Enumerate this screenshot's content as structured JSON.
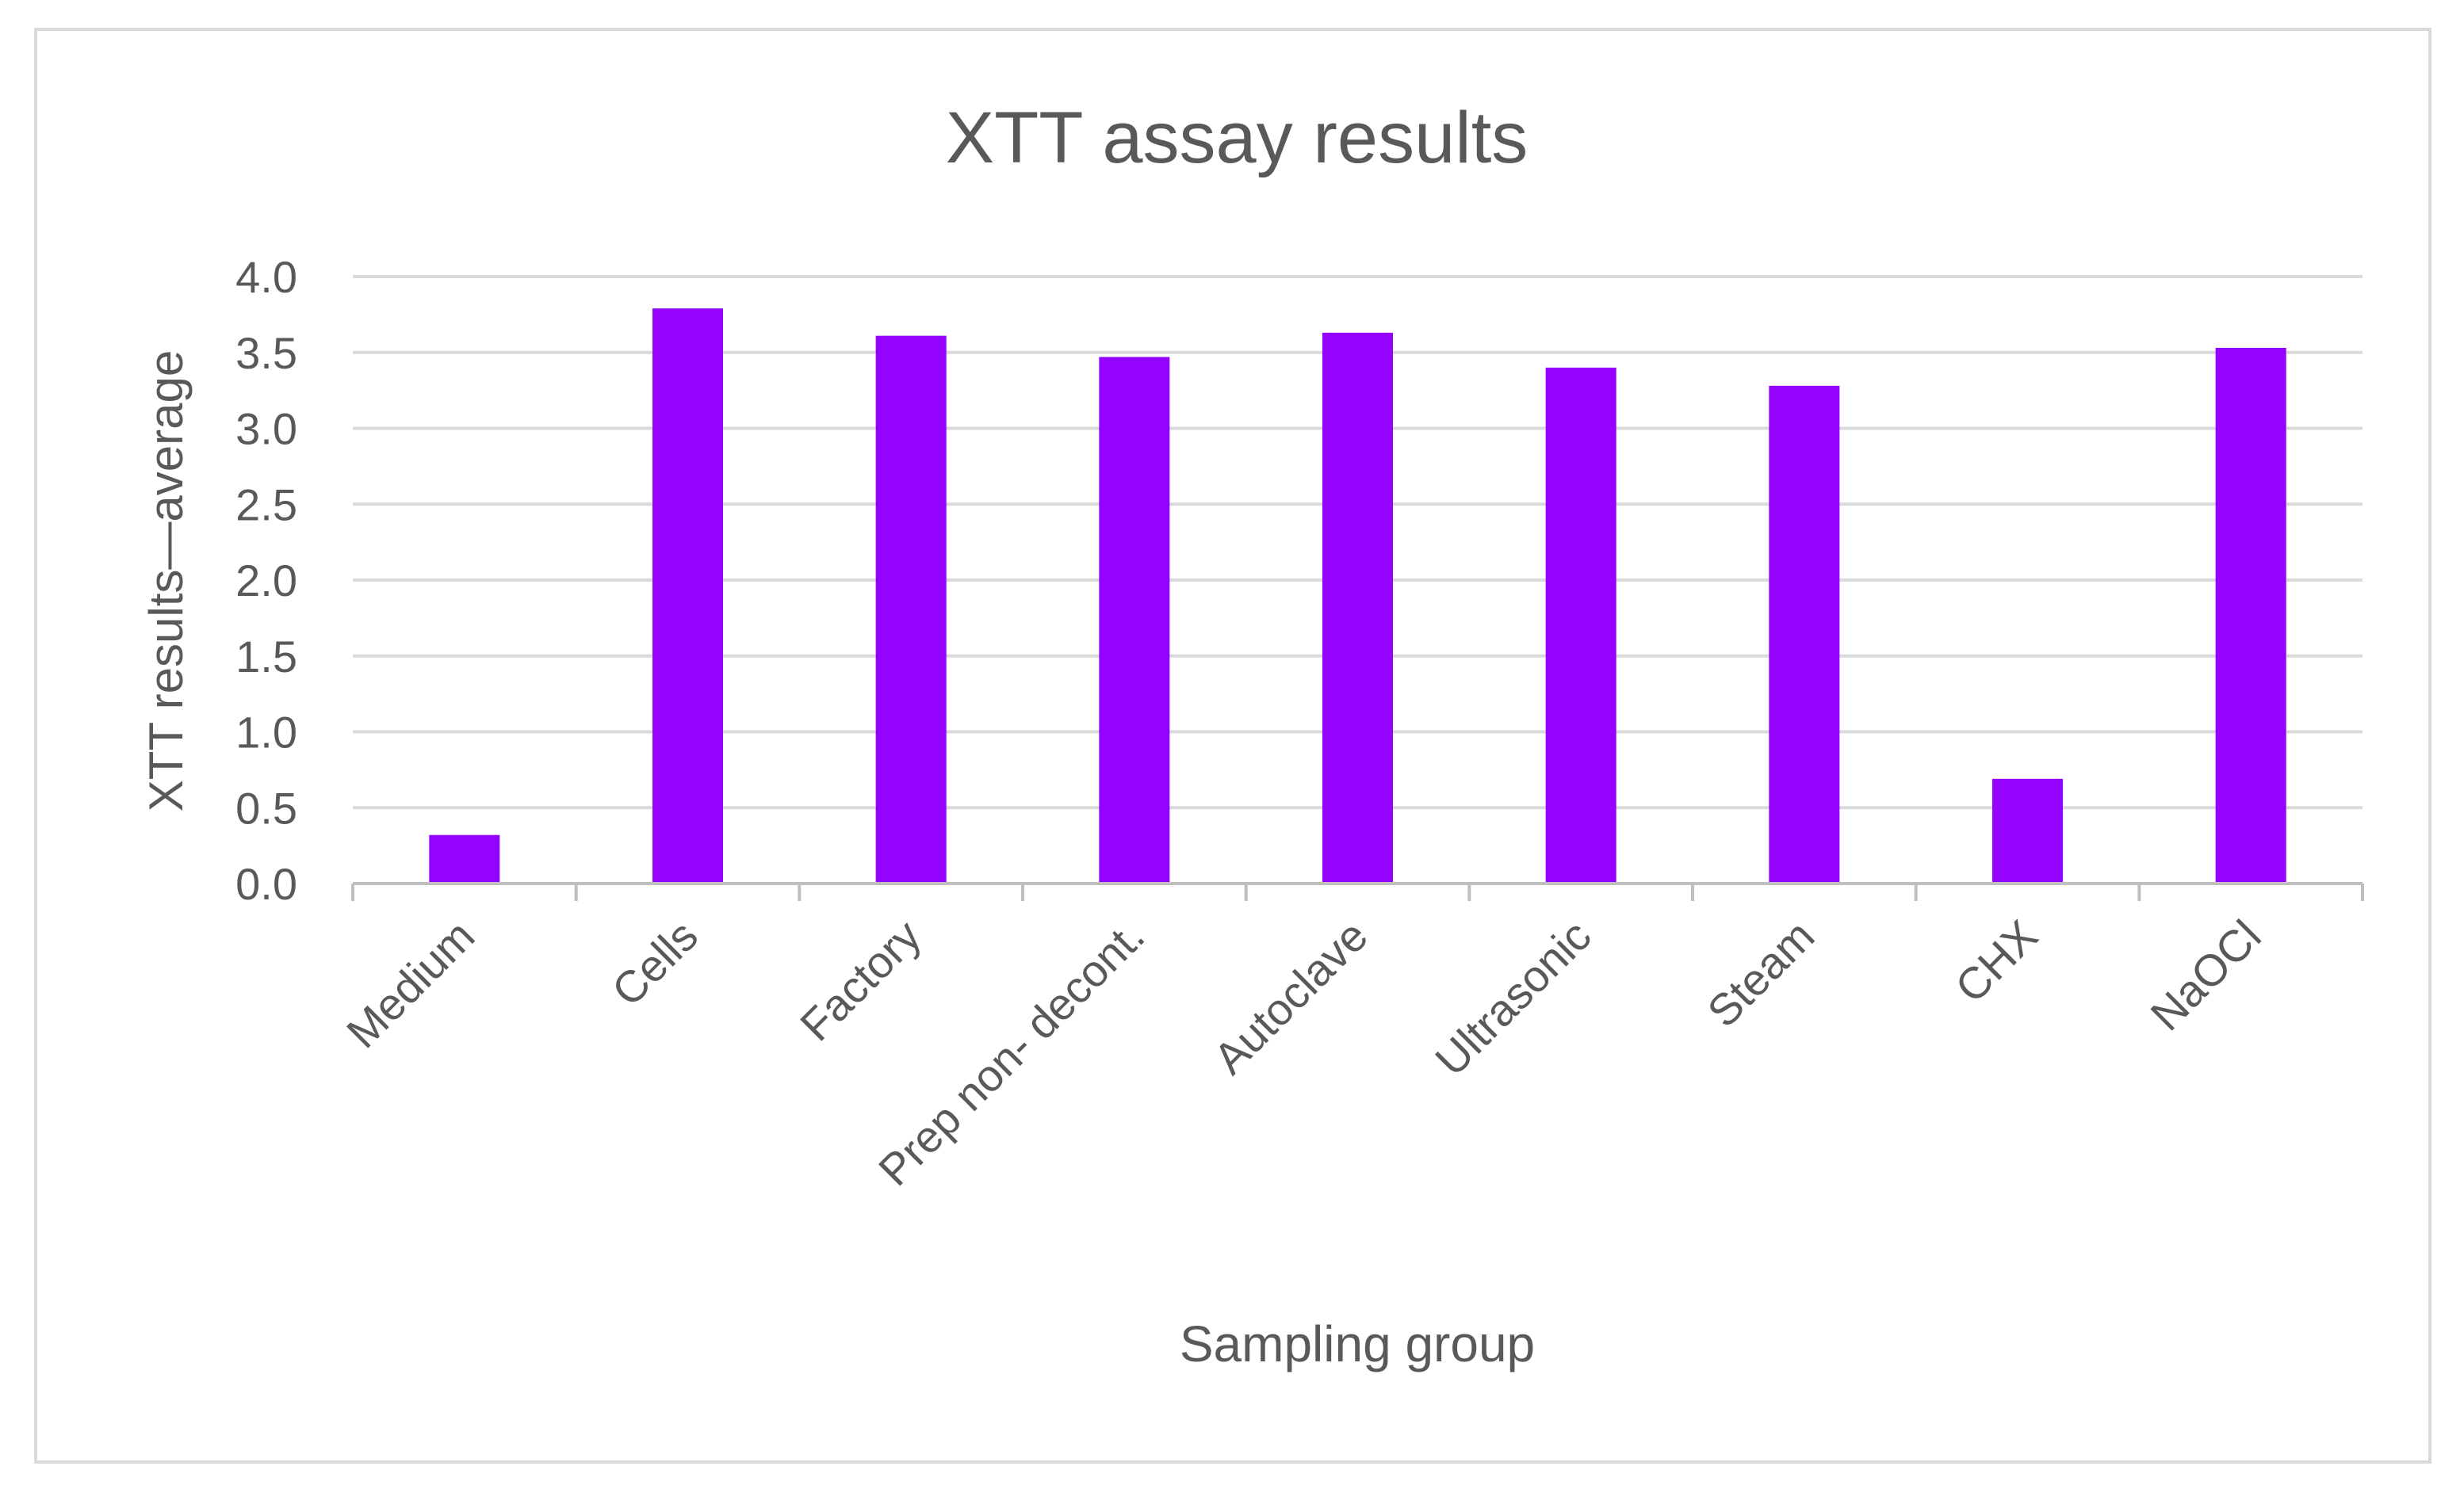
{
  "chart_data": {
    "type": "bar",
    "title": "XTT assay results",
    "xlabel": "Sampling group",
    "ylabel": "XTT results—average",
    "categories": [
      "Medium",
      "Cells",
      "Factory",
      "Prep non- decont.",
      "Autoclave",
      "Ultrasonic",
      "Steam",
      "CHX",
      "NaOCl"
    ],
    "values": [
      0.32,
      3.79,
      3.61,
      3.47,
      3.63,
      3.4,
      3.28,
      0.69,
      3.53
    ],
    "ylim": [
      0,
      4.0
    ],
    "yticks": [
      "0.0",
      "0.5",
      "1.0",
      "1.5",
      "2.0",
      "2.5",
      "3.0",
      "3.5",
      "4.0"
    ],
    "grid": true,
    "legend": "none",
    "colors": {
      "bar": "#9303FF",
      "grid": "#d9d9d9",
      "axis": "#bfbfbf",
      "text": "#595959",
      "border": "#d9d9d9"
    }
  }
}
